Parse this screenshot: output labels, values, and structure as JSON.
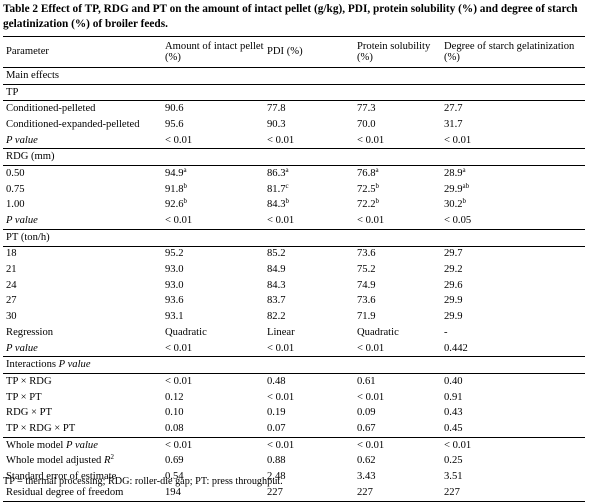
{
  "caption": "Table 2  Effect of TP, RDG and PT on the amount of intact pellet (g/kg), PDI, protein solubility (%) and degree of starch gelatinization (%) of broiler feeds.",
  "headers": [
    "Parameter",
    "Amount of intact pellet (%)",
    "PDI (%)",
    "Protein solubility (%)",
    "Degree of starch gelatinization (%)"
  ],
  "main_effects": "Main effects",
  "sections": {
    "tp": "TP",
    "rdg": "RDG (mm)",
    "pt": "PT (ton/h)",
    "interactions": "Interactions",
    "p_value": "P value",
    "whole_model_p": "Whole model",
    "whole_model_adj": "Whole model adjusted",
    "r": "R",
    "r_sup": "2"
  },
  "rows": {
    "tp1": [
      "Conditioned-pelleted",
      "90.6",
      "77.8",
      "77.3",
      "27.7"
    ],
    "tp2": [
      "Conditioned-expanded-pelleted",
      "95.6",
      "90.3",
      "70.0",
      "31.7"
    ],
    "tp_p": [
      "< 0.01",
      "< 0.01",
      "< 0.01",
      "< 0.01"
    ],
    "rdg1": [
      "0.50",
      "94.9",
      "a",
      "86.3",
      "a",
      "76.8",
      "a",
      "28.9",
      "a"
    ],
    "rdg2": [
      "0.75",
      "91.8",
      "b",
      "81.7",
      "c",
      "72.5",
      "b",
      "29.9",
      "ab"
    ],
    "rdg3": [
      "1.00",
      "92.6",
      "b",
      "84.3",
      "b",
      "72.2",
      "b",
      "30.2",
      "b"
    ],
    "rdg_p": [
      "< 0.01",
      "< 0.01",
      "< 0.01",
      "< 0.05"
    ],
    "pt1": [
      "18",
      "95.2",
      "85.2",
      "73.6",
      "29.7"
    ],
    "pt2": [
      "21",
      "93.0",
      "84.9",
      "75.2",
      "29.2"
    ],
    "pt3": [
      "24",
      "93.0",
      "84.3",
      "74.9",
      "29.6"
    ],
    "pt4": [
      "27",
      "93.6",
      "83.7",
      "73.6",
      "29.9"
    ],
    "pt5": [
      "30",
      "93.1",
      "82.2",
      "71.9",
      "29.9"
    ],
    "reg": [
      "Regression",
      "Quadratic",
      "Linear",
      "Quadratic",
      "-"
    ],
    "pt_p": [
      "< 0.01",
      "< 0.01",
      "< 0.01",
      "0.442"
    ],
    "i1": [
      "TP × RDG",
      "< 0.01",
      "0.48",
      "0.61",
      "0.40"
    ],
    "i2": [
      "TP × PT",
      "0.12",
      "< 0.01",
      "< 0.01",
      "0.91"
    ],
    "i3": [
      "RDG × PT",
      "0.10",
      "0.19",
      "0.09",
      "0.43"
    ],
    "i4": [
      "TP × RDG × PT",
      "0.08",
      "0.07",
      "0.67",
      "0.45"
    ],
    "wm_p": [
      "< 0.01",
      "< 0.01",
      "< 0.01",
      "< 0.01"
    ],
    "wm_adj": [
      "0.69",
      "0.88",
      "0.62",
      "0.25"
    ],
    "see": [
      "Standard error of estimate",
      "0.54",
      "2.48",
      "3.43",
      "3.51"
    ],
    "rdf": [
      "Residual degree of freedom",
      "194",
      "227",
      "227",
      "227"
    ]
  },
  "footnote": "TP = thermal processing; RDG: roller-die gap; PT: press throughput."
}
